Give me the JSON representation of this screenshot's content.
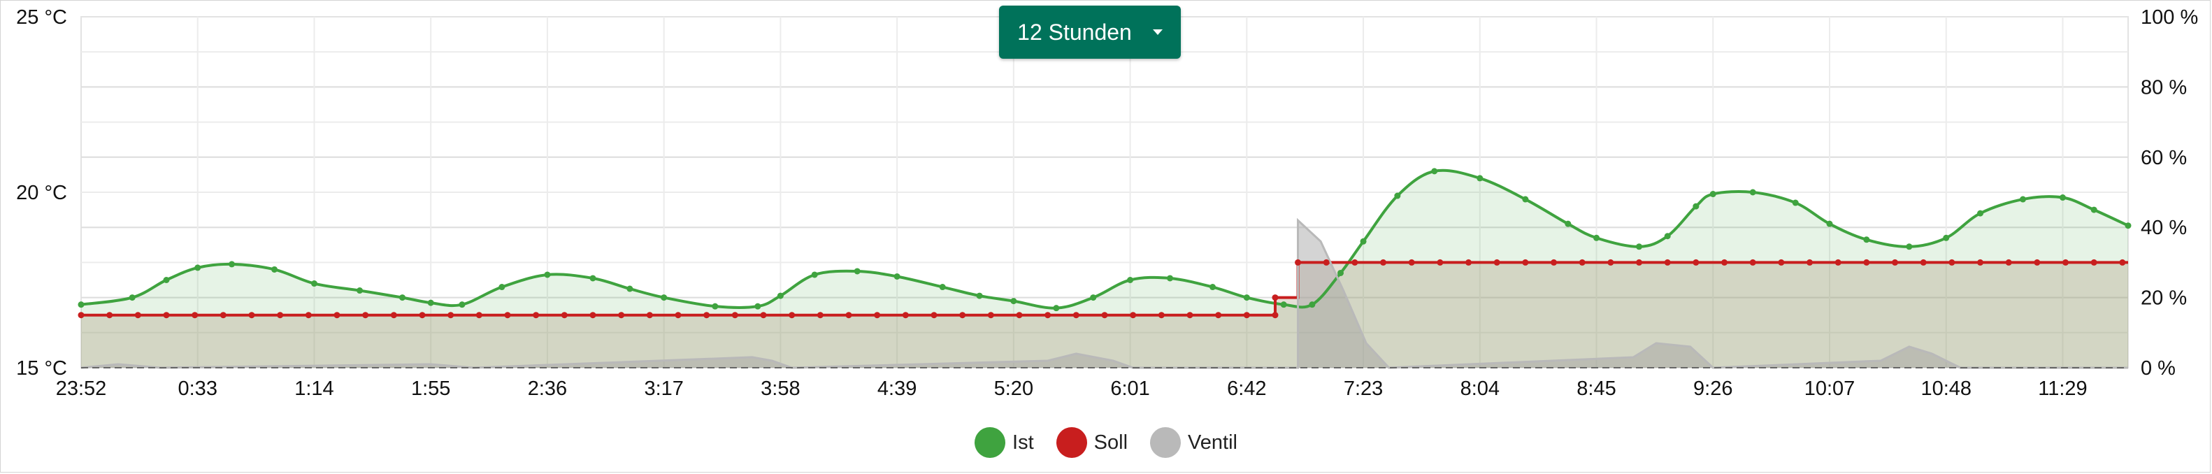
{
  "range_selector": {
    "label": "12 Stunden",
    "icon": "caret-down-icon"
  },
  "legend": [
    {
      "label": "Ist",
      "color": "#3fa33f"
    },
    {
      "label": "Soll",
      "color": "#c81e1e"
    },
    {
      "label": "Ventil",
      "color": "#b9b9b9"
    }
  ],
  "chart_data": {
    "type": "line",
    "title": "",
    "x_tick_labels": [
      "23:52",
      "0:33",
      "1:14",
      "1:55",
      "2:36",
      "3:17",
      "3:58",
      "4:39",
      "5:20",
      "6:01",
      "6:42",
      "7:23",
      "8:04",
      "8:45",
      "9:26",
      "10:07",
      "10:48",
      "11:29"
    ],
    "y_left": {
      "unit": "°C",
      "range": [
        15,
        25
      ],
      "tick_labels": [
        "25 °C",
        "20 °C",
        "15 °C"
      ]
    },
    "y_right": {
      "unit": "%",
      "range": [
        0,
        100
      ],
      "tick_labels": [
        "100 %",
        "80 %",
        "60 %",
        "40 %",
        "20 %",
        "0 %"
      ]
    },
    "series": [
      {
        "name": "Ist",
        "axis": "left",
        "color": "#3fa33f",
        "style": "smooth-line-area",
        "points": [
          [
            "23:52",
            16.8
          ],
          [
            "0:10",
            17.0
          ],
          [
            "0:22",
            17.5
          ],
          [
            "0:33",
            17.85
          ],
          [
            "0:45",
            17.95
          ],
          [
            "1:00",
            17.8
          ],
          [
            "1:14",
            17.4
          ],
          [
            "1:30",
            17.2
          ],
          [
            "1:45",
            17.0
          ],
          [
            "1:55",
            16.85
          ],
          [
            "2:06",
            16.8
          ],
          [
            "2:20",
            17.3
          ],
          [
            "2:36",
            17.65
          ],
          [
            "2:52",
            17.55
          ],
          [
            "3:05",
            17.25
          ],
          [
            "3:17",
            17.0
          ],
          [
            "3:35",
            16.75
          ],
          [
            "3:50",
            16.75
          ],
          [
            "3:58",
            17.05
          ],
          [
            "4:10",
            17.65
          ],
          [
            "4:25",
            17.75
          ],
          [
            "4:39",
            17.6
          ],
          [
            "4:55",
            17.3
          ],
          [
            "5:08",
            17.05
          ],
          [
            "5:20",
            16.9
          ],
          [
            "5:35",
            16.7
          ],
          [
            "5:48",
            17.0
          ],
          [
            "6:01",
            17.5
          ],
          [
            "6:15",
            17.55
          ],
          [
            "6:30",
            17.3
          ],
          [
            "6:42",
            17.0
          ],
          [
            "6:55",
            16.8
          ],
          [
            "7:05",
            16.8
          ],
          [
            "7:15",
            17.7
          ],
          [
            "7:23",
            18.6
          ],
          [
            "7:35",
            19.9
          ],
          [
            "7:48",
            20.6
          ],
          [
            "8:04",
            20.4
          ],
          [
            "8:20",
            19.8
          ],
          [
            "8:35",
            19.1
          ],
          [
            "8:45",
            18.7
          ],
          [
            "9:00",
            18.45
          ],
          [
            "9:10",
            18.75
          ],
          [
            "9:20",
            19.6
          ],
          [
            "9:26",
            19.95
          ],
          [
            "9:40",
            20.0
          ],
          [
            "9:55",
            19.7
          ],
          [
            "10:07",
            19.1
          ],
          [
            "10:20",
            18.65
          ],
          [
            "10:35",
            18.45
          ],
          [
            "10:48",
            18.7
          ],
          [
            "11:00",
            19.4
          ],
          [
            "11:15",
            19.8
          ],
          [
            "11:29",
            19.85
          ],
          [
            "11:40",
            19.5
          ],
          [
            "11:52",
            19.05
          ]
        ]
      },
      {
        "name": "Soll",
        "axis": "left",
        "color": "#c81e1e",
        "style": "step-line",
        "points": [
          [
            "23:52",
            16.5
          ],
          [
            "6:52",
            16.5
          ],
          [
            "6:52",
            17.0
          ],
          [
            "7:00",
            17.0
          ],
          [
            "7:00",
            18.0
          ],
          [
            "11:52",
            18.0
          ]
        ]
      },
      {
        "name": "Ventil",
        "axis": "right",
        "color": "#b9b9b9",
        "style": "step-line",
        "points": [
          [
            "23:52",
            0
          ],
          [
            "0:05",
            1
          ],
          [
            "0:20",
            0
          ],
          [
            "1:55",
            1
          ],
          [
            "2:10",
            0
          ],
          [
            "3:48",
            3
          ],
          [
            "3:55",
            2
          ],
          [
            "4:02",
            0
          ],
          [
            "5:32",
            2
          ],
          [
            "5:42",
            4
          ],
          [
            "5:55",
            2
          ],
          [
            "6:02",
            0
          ],
          [
            "7:00",
            0
          ],
          [
            "7:00",
            42
          ],
          [
            "7:08",
            36
          ],
          [
            "7:16",
            22
          ],
          [
            "7:24",
            7
          ],
          [
            "7:32",
            0
          ],
          [
            "8:58",
            3
          ],
          [
            "9:06",
            7
          ],
          [
            "9:18",
            6
          ],
          [
            "9:26",
            0
          ],
          [
            "10:25",
            2
          ],
          [
            "10:35",
            6
          ],
          [
            "10:43",
            4
          ],
          [
            "10:53",
            0
          ],
          [
            "11:52",
            0
          ]
        ]
      }
    ]
  }
}
